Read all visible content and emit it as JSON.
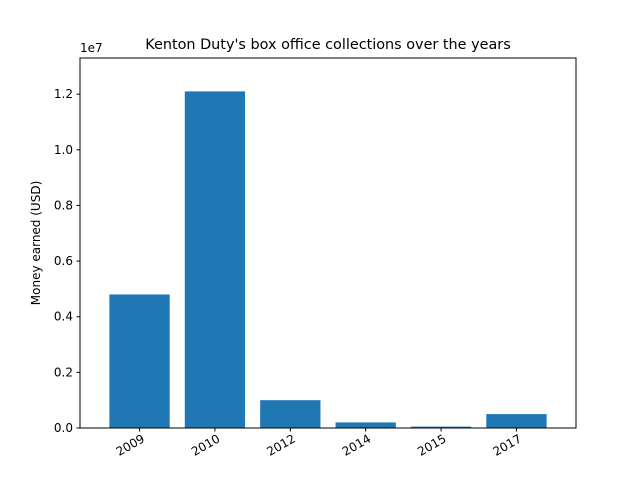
{
  "chart_data": {
    "type": "bar",
    "title": "Kenton Duty's box office collections over the years",
    "xlabel": "",
    "ylabel": "Money earned (USD)",
    "y_scale_label": "1e7",
    "categories": [
      "2009",
      "2010",
      "2012",
      "2014",
      "2015",
      "2017"
    ],
    "values": [
      4800000,
      12100000,
      1000000,
      200000,
      50000,
      500000
    ],
    "ylim": [
      0,
      13300000
    ],
    "yticks": [
      0,
      2000000,
      4000000,
      6000000,
      8000000,
      10000000,
      12000000
    ],
    "ytick_labels": [
      "0.0",
      "0.2",
      "0.4",
      "0.6",
      "0.8",
      "1.0",
      "1.2"
    ],
    "bar_color": "#1f77b4",
    "grid": false,
    "legend": "none"
  }
}
